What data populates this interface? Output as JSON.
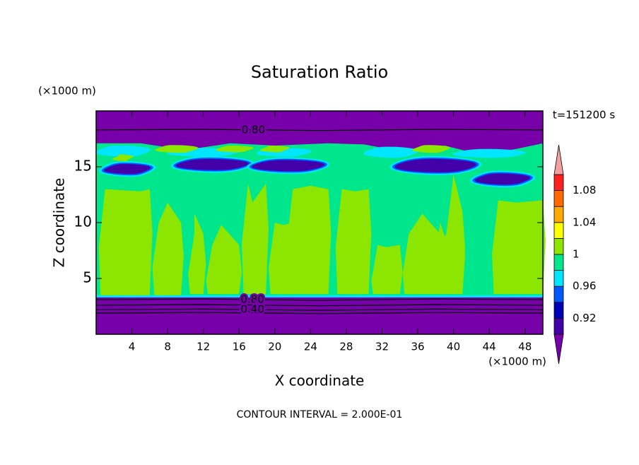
{
  "chart_data": {
    "type": "contour",
    "title": "Saturation Ratio",
    "xlabel": "X coordinate",
    "ylabel": "Z coordinate",
    "x_units": "(×1000 m)",
    "y_units": "(×1000 m)",
    "time_label": "t=151200 s",
    "footer": "CONTOUR INTERVAL = 2.000E-01",
    "xlim": [
      0,
      50
    ],
    "ylim": [
      0,
      20
    ],
    "xticks": [
      4,
      8,
      12,
      16,
      20,
      24,
      28,
      32,
      36,
      40,
      44,
      48
    ],
    "yticks": [
      5,
      10,
      15
    ],
    "contour_labels": [
      {
        "value": 0.8,
        "label": "0.80"
      },
      {
        "value": 0.8,
        "label": "0.80"
      },
      {
        "value": 0.4,
        "label": "0.40"
      }
    ],
    "colorbar": {
      "levels": [
        0.9,
        0.92,
        0.94,
        0.96,
        0.98,
        1,
        1.02,
        1.04,
        1.06,
        1.08,
        1.1
      ],
      "colors": [
        "#7800aa",
        "#4400a8",
        "#0000b8",
        "#0058ff",
        "#00e6ff",
        "#00e68c",
        "#8ce600",
        "#ffff00",
        "#ffaa00",
        "#ff6a00",
        "#ff2020",
        "#f0a0a0"
      ],
      "ticks": [
        0.92,
        0.96,
        1,
        1.04,
        1.08
      ]
    }
  }
}
